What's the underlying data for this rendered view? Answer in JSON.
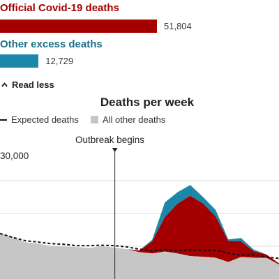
{
  "summary": {
    "official_label": "Official Covid-19 deaths",
    "official_value_label": "51,804",
    "official_value": 51804,
    "official_color": "#a50000",
    "excess_label": "Other excess deaths",
    "excess_value_label": "12,729",
    "excess_value": 12729,
    "excess_color": "#1c87a8",
    "title_color_official": "#a50000",
    "title_color_excess": "#1c6f8a"
  },
  "toggle": {
    "label": "Read less",
    "icon": "chevron-up-icon"
  },
  "chart_data": {
    "type": "area",
    "title": "Deaths per week",
    "legend": [
      {
        "name": "Expected deaths",
        "style": "dashed-line",
        "color": "#111111"
      },
      {
        "name": "All other deaths",
        "style": "filled-square",
        "color": "#c6c6c6"
      }
    ],
    "legend_position": "top",
    "annotation": "Outbreak begins",
    "annotation_x": 9,
    "y_tick_labels": [
      "30,000"
    ],
    "y_ticks": [
      10000,
      20000,
      30000
    ],
    "ylim": [
      0,
      36000
    ],
    "grid": true,
    "x": [
      0,
      1,
      2,
      3,
      4,
      5,
      6,
      7,
      8,
      9,
      10,
      11,
      12,
      13,
      14,
      15,
      16,
      17,
      18,
      19,
      20,
      21,
      22
    ],
    "series": [
      {
        "name": "All other deaths",
        "color": "#c6c6c6",
        "values": [
          13900,
          12800,
          11200,
          10800,
          10100,
          9900,
          9800,
          9500,
          10000,
          9600,
          9100,
          8200,
          7800,
          8400,
          7800,
          7000,
          6800,
          6500,
          5200,
          6700,
          6500,
          6500,
          4400
        ]
      },
      {
        "name": "Official Covid-19 deaths",
        "color": "#a50000",
        "values": [
          0,
          0,
          0,
          0,
          0,
          0,
          0,
          0,
          0,
          0,
          0,
          500,
          3700,
          10500,
          15200,
          18400,
          16300,
          12600,
          6400,
          4800,
          2000,
          1000,
          400
        ]
      },
      {
        "name": "Other excess deaths",
        "color": "#1c87a8",
        "values": [
          0,
          0,
          0,
          0,
          0,
          0,
          0,
          0,
          0,
          0,
          0,
          100,
          500,
          4500,
          3500,
          3300,
          2000,
          2000,
          500,
          1000,
          500,
          0,
          0
        ]
      },
      {
        "name": "Expected deaths",
        "color": "#111111",
        "style": "dashed",
        "values": [
          13900,
          12700,
          11700,
          11300,
          10800,
          10600,
          10200,
          10200,
          10300,
          10200,
          9800,
          9100,
          8600,
          8900,
          8600,
          8900,
          8700,
          8800,
          7900,
          7300,
          7400,
          6700,
          6300
        ]
      }
    ]
  }
}
